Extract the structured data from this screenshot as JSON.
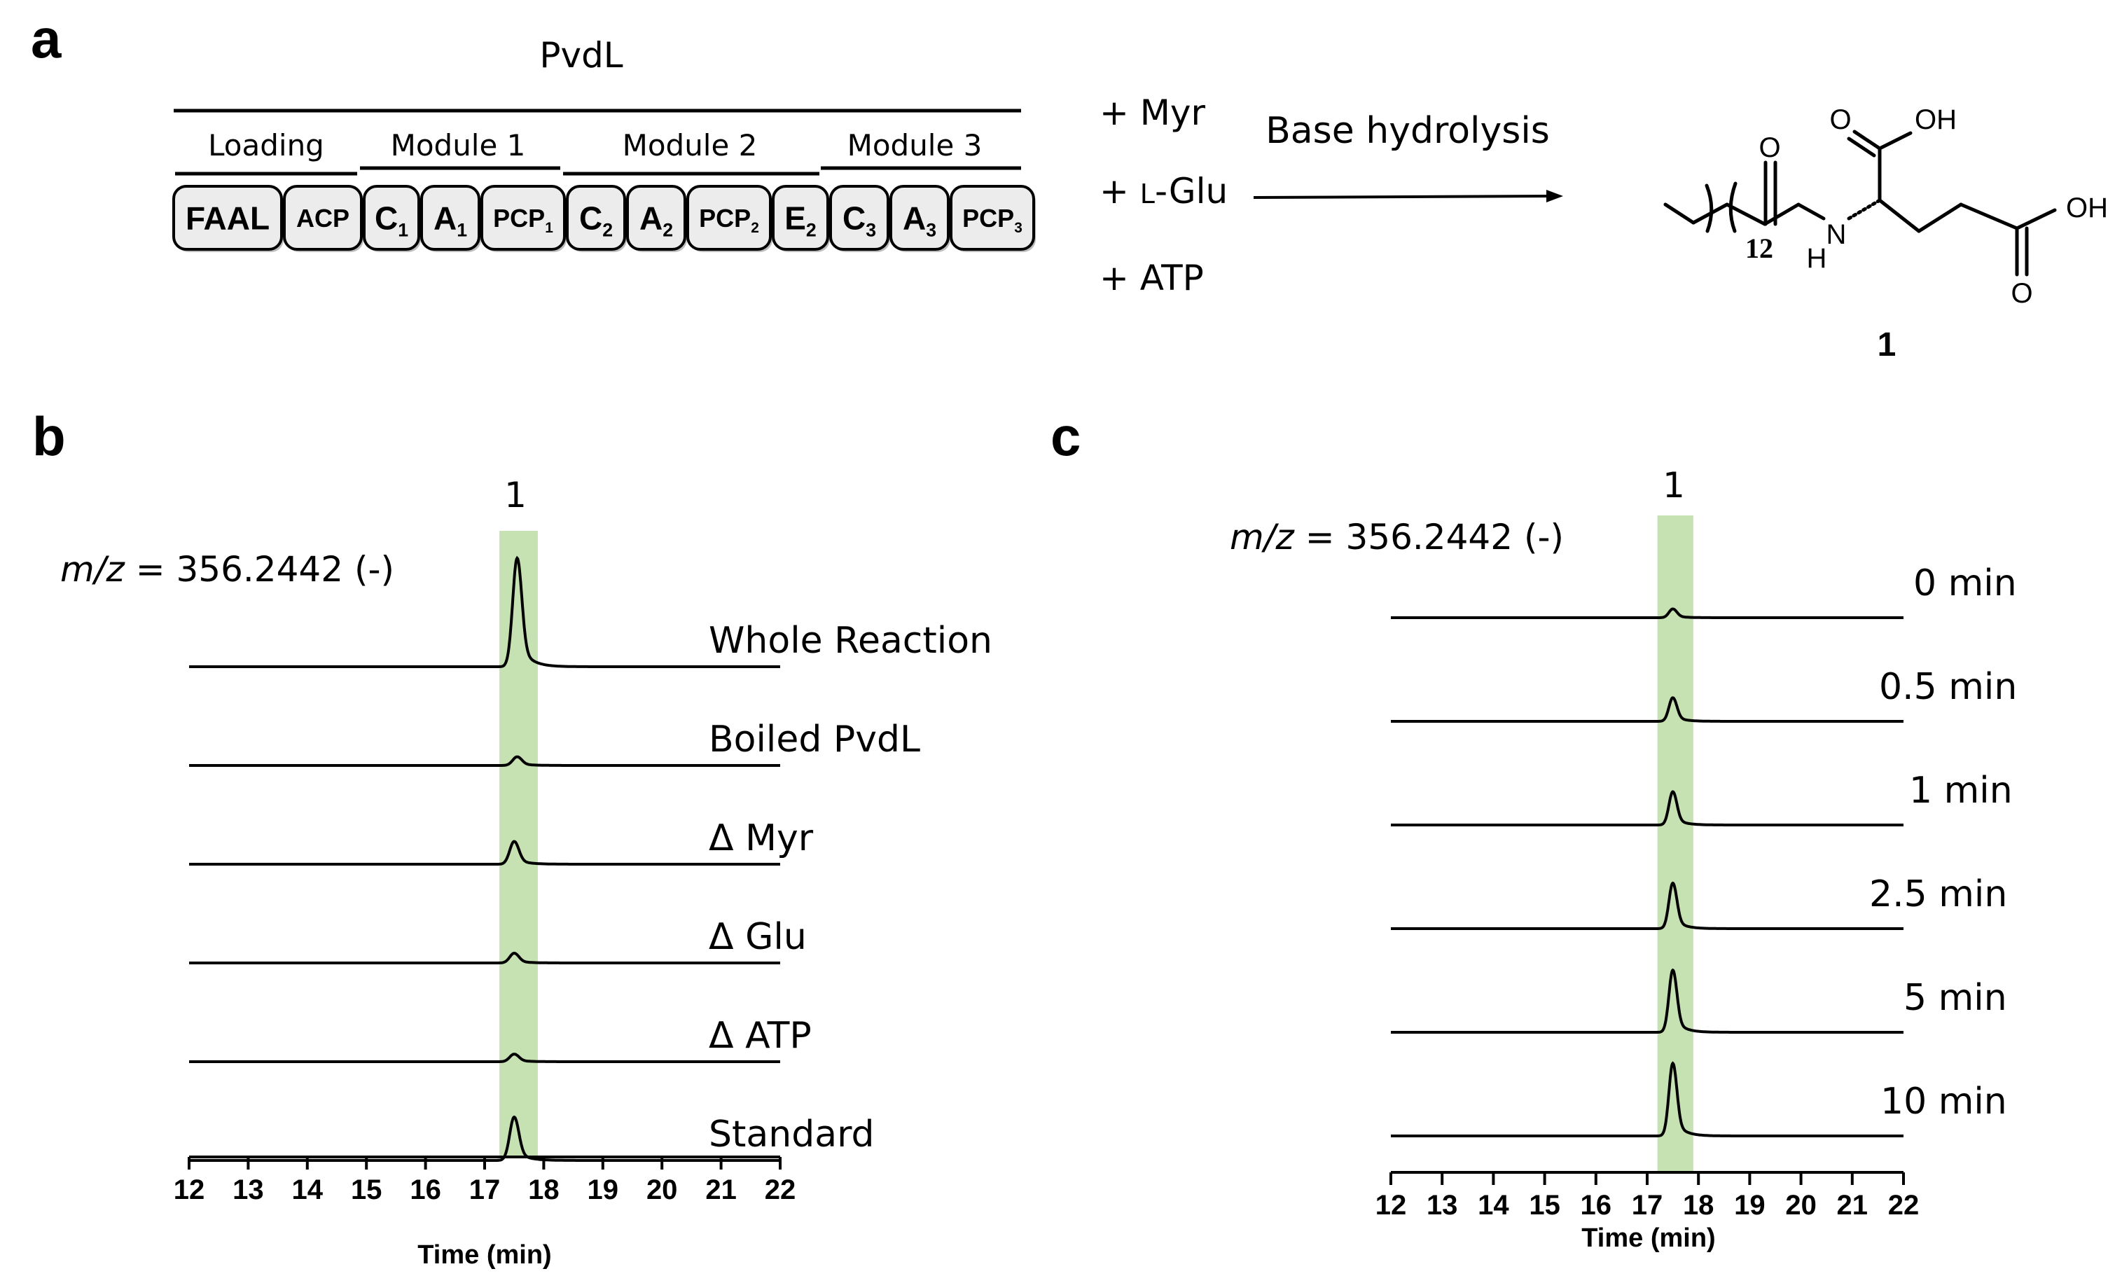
{
  "panels": {
    "a": "a",
    "b": "b",
    "c": "c"
  },
  "panel_a": {
    "title": "PvdL",
    "modules": [
      "Loading",
      "Module 1",
      "Module 2",
      "Module 3"
    ],
    "domains": [
      {
        "main": "FAAL",
        "sub": ""
      },
      {
        "main": "ACP",
        "sub": ""
      },
      {
        "main": "C",
        "sub": "1"
      },
      {
        "main": "A",
        "sub": "1"
      },
      {
        "main": "PCP",
        "sub": "1"
      },
      {
        "main": "C",
        "sub": "2"
      },
      {
        "main": "A",
        "sub": "2"
      },
      {
        "main": "PCP",
        "sub": "2"
      },
      {
        "main": "E",
        "sub": "2"
      },
      {
        "main": "C",
        "sub": "3"
      },
      {
        "main": "A",
        "sub": "3"
      },
      {
        "main": "PCP",
        "sub": "3"
      }
    ],
    "reagents": [
      "+ Myr",
      "+ L-Glu",
      "+ ATP"
    ],
    "reagent_glu_prefix": "+ ",
    "reagent_glu_small": "L",
    "reagent_glu_suffix": "-Glu",
    "arrow_label": "Base hydrolysis",
    "compound": {
      "label": "1",
      "atom_O1": "O",
      "atom_O2": "O",
      "atom_OH1": "OH",
      "atom_OH2": "OH",
      "atom_O3": "O",
      "atom_N": "N",
      "atom_H": "H",
      "repeat": "12"
    }
  },
  "panel_b": {
    "peak_label": "1",
    "mz_prefix": "m/z",
    "mz_value": " = 356.2442 (-)",
    "traces": [
      "Whole Reaction",
      "Boiled PvdL",
      "Δ Myr",
      "Δ Glu",
      "Δ ATP",
      "Standard"
    ],
    "xlabel": "Time (min)",
    "ticks": [
      "12",
      "13",
      "14",
      "15",
      "16",
      "17",
      "18",
      "19",
      "20",
      "21",
      "22"
    ]
  },
  "panel_c": {
    "peak_label": "1",
    "mz_prefix": "m/z",
    "mz_value": " = 356.2442 (-)",
    "traces": [
      "0 min",
      "0.5 min",
      "1 min",
      "2.5 min",
      "5 min",
      "10 min"
    ],
    "xlabel": "Time (min)",
    "ticks": [
      "12",
      "13",
      "14",
      "15",
      "16",
      "17",
      "18",
      "19",
      "20",
      "21",
      "22"
    ]
  },
  "chart_data": [
    {
      "type": "line",
      "title": "m/z = 356.2442 (-)",
      "xlabel": "Time (min)",
      "ylabel": "",
      "xlim": [
        12,
        22
      ],
      "highlight_range": [
        17.25,
        17.9
      ],
      "highlight_color": "#c6e2b3",
      "series": [
        {
          "name": "Whole Reaction",
          "peak_time": 17.55,
          "peak_height": 1.0
        },
        {
          "name": "Boiled PvdL",
          "peak_time": 17.55,
          "peak_height": 0.08
        },
        {
          "name": "Δ Myr",
          "peak_time": 17.5,
          "peak_height": 0.21
        },
        {
          "name": "Δ Glu",
          "peak_time": 17.5,
          "peak_height": 0.09
        },
        {
          "name": "Δ ATP",
          "peak_time": 17.5,
          "peak_height": 0.07
        },
        {
          "name": "Standard",
          "peak_time": 17.5,
          "peak_height": 0.4
        }
      ]
    },
    {
      "type": "line",
      "title": "m/z = 356.2442 (-)",
      "xlabel": "Time (min)",
      "ylabel": "",
      "xlim": [
        12,
        22
      ],
      "highlight_range": [
        17.2,
        17.9
      ],
      "highlight_color": "#c6e2b3",
      "series": [
        {
          "name": "0 min",
          "peak_time": 17.5,
          "peak_height": 0.1
        },
        {
          "name": "0.5 min",
          "peak_time": 17.5,
          "peak_height": 0.27
        },
        {
          "name": "1 min",
          "peak_time": 17.5,
          "peak_height": 0.38
        },
        {
          "name": "2.5 min",
          "peak_time": 17.5,
          "peak_height": 0.52
        },
        {
          "name": "5 min",
          "peak_time": 17.5,
          "peak_height": 0.71
        },
        {
          "name": "10 min",
          "peak_time": 17.5,
          "peak_height": 0.83
        }
      ]
    }
  ]
}
